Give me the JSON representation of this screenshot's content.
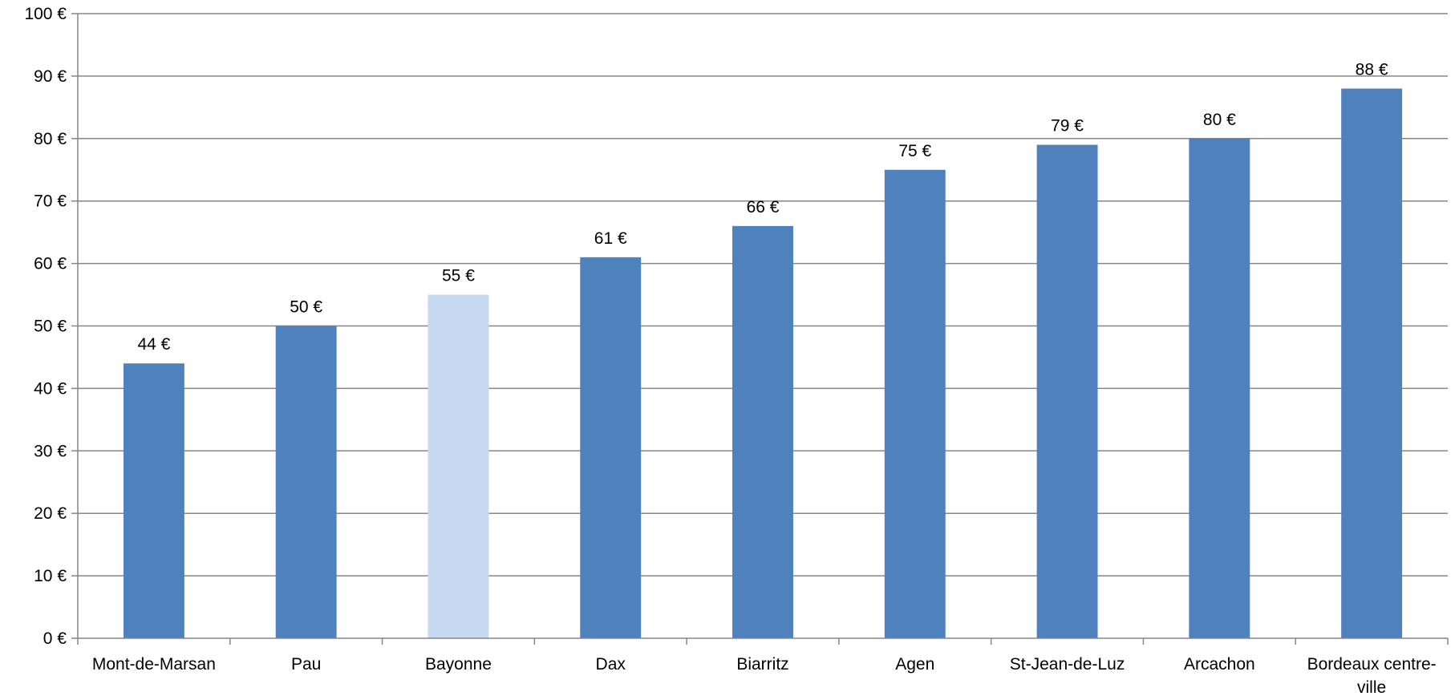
{
  "chart_data": {
    "type": "bar",
    "title": "",
    "xlabel": "",
    "ylabel": "",
    "categories": [
      "Mont-de-Marsan",
      "Pau",
      "Bayonne",
      "Dax",
      "Biarritz",
      "Agen",
      "St-Jean-de-Luz",
      "Arcachon",
      "Bordeaux centre-ville"
    ],
    "values": [
      44,
      50,
      55,
      61,
      66,
      75,
      79,
      80,
      88
    ],
    "data_labels": [
      "44 €",
      "50 €",
      "55 €",
      "61 €",
      "66 €",
      "75 €",
      "79 €",
      "80 €",
      "88 €"
    ],
    "highlighted_index": 2,
    "ylim": [
      0,
      100
    ],
    "y_ticks": [
      0,
      10,
      20,
      30,
      40,
      50,
      60,
      70,
      80,
      90,
      100
    ],
    "y_tick_labels": [
      "0 €",
      "10 €",
      "20 €",
      "30 €",
      "40 €",
      "50 €",
      "60 €",
      "70 €",
      "80 €",
      "90 €",
      "100 €"
    ],
    "grid": true,
    "legend": "none",
    "colors": {
      "bar": "#4f81bd",
      "bar_highlight": "#c6d9f1",
      "gridline": "#868686",
      "axis": "#868686"
    }
  }
}
